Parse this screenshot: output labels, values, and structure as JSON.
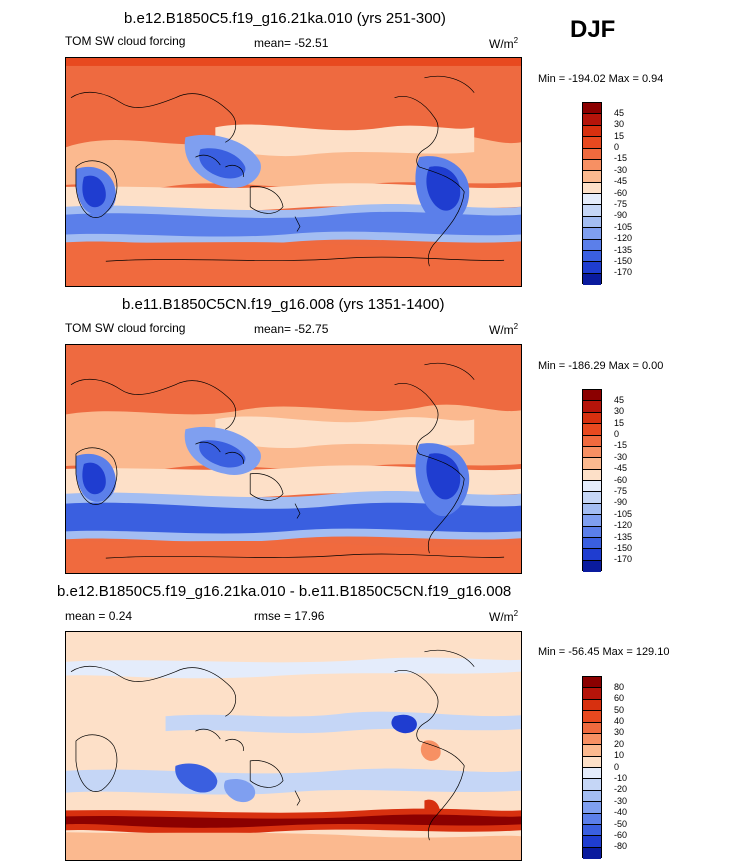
{
  "season": "DJF",
  "panels": [
    {
      "title": "b.e12.B1850C5.f19_g16.21ka.010 (yrs 251-300)",
      "left_label": "TOM SW cloud forcing",
      "mean_label": "mean= -52.51",
      "units_base": "W/m",
      "units_exp": "2",
      "minmax": "Min = -194.02 Max =   0.94",
      "colorbar": {
        "labels": [
          "45",
          "30",
          "15",
          "0",
          "-15",
          "-30",
          "-45",
          "-60",
          "-75",
          "-90",
          "-105",
          "-120",
          "-135",
          "-150",
          "-170"
        ],
        "colors": [
          "#8b0000",
          "#b5140a",
          "#d7300f",
          "#e8491f",
          "#f06a3e",
          "#f79063",
          "#fbb98f",
          "#fde0c8",
          "#e4ecfb",
          "#c5d6f6",
          "#a3bdf2",
          "#7f9ff0",
          "#5b7fea",
          "#3a5fe0",
          "#1f3dd0",
          "#0a1b9e"
        ]
      }
    },
    {
      "title": "b.e11.B1850C5CN.f19_g16.008 (yrs 1351-1400)",
      "left_label": "TOM SW cloud forcing",
      "mean_label": "mean= -52.75",
      "units_base": "W/m",
      "units_exp": "2",
      "minmax": "Min = -186.29 Max =   0.00",
      "colorbar": {
        "labels": [
          "45",
          "30",
          "15",
          "0",
          "-15",
          "-30",
          "-45",
          "-60",
          "-75",
          "-90",
          "-105",
          "-120",
          "-135",
          "-150",
          "-170"
        ],
        "colors": [
          "#8b0000",
          "#b5140a",
          "#d7300f",
          "#e8491f",
          "#f06a3e",
          "#f79063",
          "#fbb98f",
          "#fde0c8",
          "#e4ecfb",
          "#c5d6f6",
          "#a3bdf2",
          "#7f9ff0",
          "#5b7fea",
          "#3a5fe0",
          "#1f3dd0",
          "#0a1b9e"
        ]
      }
    },
    {
      "title": "b.e12.B1850C5.f19_g16.21ka.010 - b.e11.B1850C5CN.f19_g16.008",
      "left_label": "mean =   0.24",
      "mean_label": "rmse =  17.96",
      "units_base": "W/m",
      "units_exp": "2",
      "minmax": "Min = -56.45 Max = 129.10",
      "colorbar": {
        "labels": [
          "80",
          "60",
          "50",
          "40",
          "30",
          "20",
          "10",
          "0",
          "-10",
          "-20",
          "-30",
          "-40",
          "-50",
          "-60",
          "-80"
        ],
        "colors": [
          "#8b0000",
          "#b5140a",
          "#d7300f",
          "#e8491f",
          "#f06a3e",
          "#f79063",
          "#fbb98f",
          "#fde0c8",
          "#e4ecfb",
          "#c5d6f6",
          "#a3bdf2",
          "#7f9ff0",
          "#5b7fea",
          "#3a5fe0",
          "#1f3dd0",
          "#0a1b9e"
        ]
      }
    }
  ]
}
